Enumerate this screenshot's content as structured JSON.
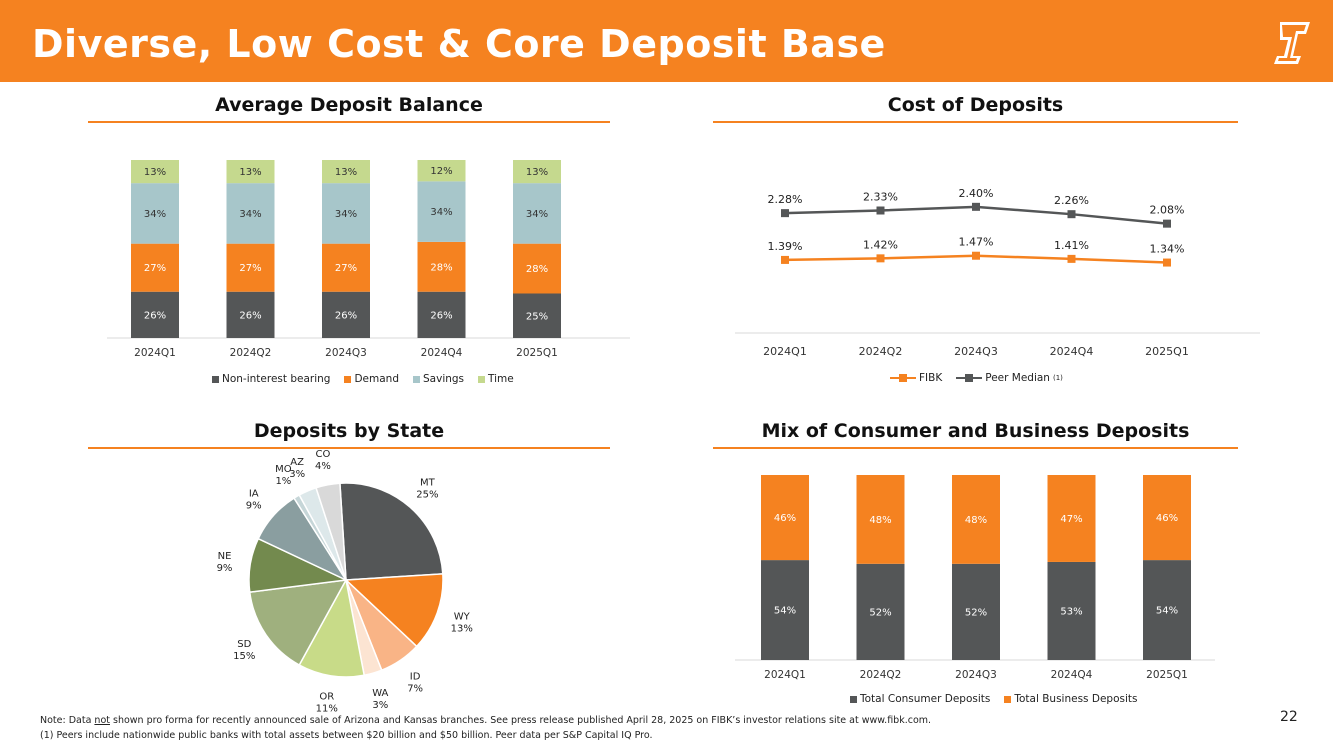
{
  "header": {
    "title": "Diverse, Low Cost & Core Deposit Base"
  },
  "colors": {
    "brand_orange": "#F58220",
    "dark_gray": "#545657",
    "light_blue": "#A7C6CA",
    "light_green": "#C5D98E"
  },
  "chart_data": [
    {
      "type": "bar",
      "stacked": true,
      "title": "Average Deposit Balance",
      "categories": [
        "2024Q1",
        "2024Q2",
        "2024Q3",
        "2024Q4",
        "2025Q1"
      ],
      "series": [
        {
          "name": "Non-interest bearing",
          "values": [
            26,
            26,
            26,
            26,
            25
          ],
          "labels": [
            "26%",
            "26%",
            "26%",
            "26%",
            "25%"
          ]
        },
        {
          "name": "Demand",
          "values": [
            27,
            27,
            27,
            28,
            28
          ],
          "labels": [
            "27%",
            "27%",
            "27%",
            "28%",
            "28%"
          ]
        },
        {
          "name": "Savings",
          "values": [
            34,
            34,
            34,
            34,
            34
          ],
          "labels": [
            "34%",
            "34%",
            "34%",
            "34%",
            "34%"
          ]
        },
        {
          "name": "Time",
          "values": [
            13,
            13,
            13,
            12,
            13
          ],
          "labels": [
            "13%",
            "13%",
            "13%",
            "12%",
            "13%"
          ]
        }
      ],
      "ylim": [
        0,
        100
      ],
      "legend": "bottom"
    },
    {
      "type": "line",
      "title": "Cost of Deposits",
      "categories": [
        "2024Q1",
        "2024Q2",
        "2024Q3",
        "2024Q4",
        "2025Q1"
      ],
      "series": [
        {
          "name": "FIBK",
          "values": [
            1.39,
            1.42,
            1.47,
            1.41,
            1.34
          ],
          "labels": [
            "1.39%",
            "1.42%",
            "1.47%",
            "1.41%",
            "1.34%"
          ]
        },
        {
          "name": "Peer Median",
          "footnote": "(1)",
          "values": [
            2.28,
            2.33,
            2.4,
            2.26,
            2.08
          ],
          "labels": [
            "2.28%",
            "2.33%",
            "2.40%",
            "2.26%",
            "2.08%"
          ]
        }
      ],
      "ylim": [
        0,
        3.5
      ],
      "legend": "bottom"
    },
    {
      "type": "pie",
      "title": "Deposits by State",
      "slices": [
        {
          "name": "MT",
          "value": 25,
          "label": "25%"
        },
        {
          "name": "WY",
          "value": 13,
          "label": "13%"
        },
        {
          "name": "ID",
          "value": 7,
          "label": "7%"
        },
        {
          "name": "WA",
          "value": 3,
          "label": "3%"
        },
        {
          "name": "OR",
          "value": 11,
          "label": "11%"
        },
        {
          "name": "SD",
          "value": 15,
          "label": "15%"
        },
        {
          "name": "NE",
          "value": 9,
          "label": "9%"
        },
        {
          "name": "IA",
          "value": 9,
          "label": "9%"
        },
        {
          "name": "MO",
          "value": 1,
          "label": "1%"
        },
        {
          "name": "AZ",
          "value": 3,
          "label": "3%"
        },
        {
          "name": "CO",
          "value": 4,
          "label": "4%"
        }
      ]
    },
    {
      "type": "bar",
      "stacked": true,
      "title": "Mix of Consumer and Business Deposits",
      "categories": [
        "2024Q1",
        "2024Q2",
        "2024Q3",
        "2024Q4",
        "2025Q1"
      ],
      "series": [
        {
          "name": "Total Consumer Deposits",
          "values": [
            54,
            52,
            52,
            53,
            54
          ],
          "labels": [
            "54%",
            "52%",
            "52%",
            "53%",
            "54%"
          ]
        },
        {
          "name": "Total Business Deposits",
          "values": [
            46,
            48,
            48,
            47,
            46
          ],
          "labels": [
            "46%",
            "48%",
            "48%",
            "47%",
            "46%"
          ]
        }
      ],
      "ylim": [
        0,
        100
      ],
      "legend": "bottom"
    }
  ],
  "footnotes": {
    "note_prefix": "Note: Data ",
    "note_underline": "not",
    "note_suffix": " shown pro forma for recently announced sale of Arizona and Kansas branches. See press release published April 28, 2025 on FIBK’s investor relations site at www.fibk.com.",
    "fn1": "(1)    Peers include nationwide public banks with total assets between $20 billion and $50 billion. Peer data per S&P Capital IQ Pro."
  },
  "page_number": "22"
}
